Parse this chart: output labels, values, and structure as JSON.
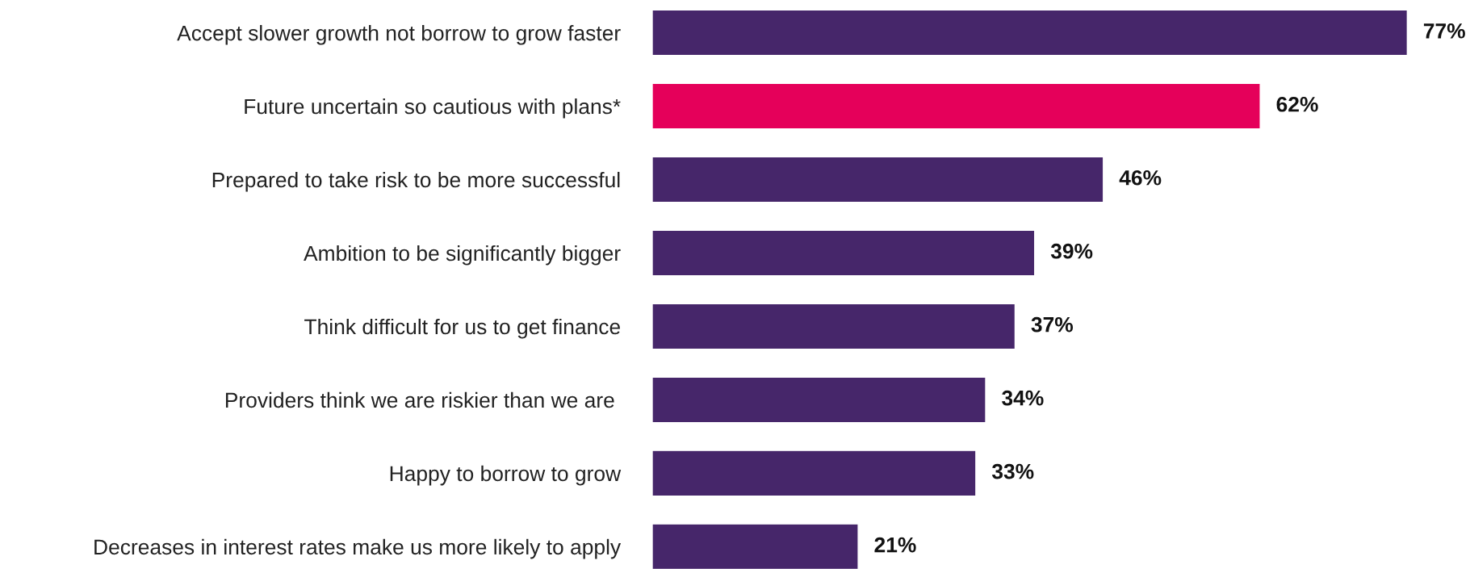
{
  "chart_data": {
    "type": "bar",
    "orientation": "horizontal",
    "categories": [
      "Accept slower growth not borrow to grow faster",
      "Future uncertain so cautious with plans*",
      "Prepared to take risk to be more successful",
      "Ambition to be significantly bigger",
      "Think difficult for us to get finance",
      "Providers think we are riskier than we are ",
      "Happy to borrow to grow",
      "Decreases in interest rates make us more likely to apply"
    ],
    "values": [
      77,
      62,
      46,
      39,
      37,
      34,
      33,
      21
    ],
    "colors": [
      "#46266a",
      "#e5005a",
      "#46266a",
      "#46266a",
      "#46266a",
      "#46266a",
      "#46266a",
      "#46266a"
    ],
    "value_labels": [
      "77%",
      "62%",
      "46%",
      "39%",
      "37%",
      "34%",
      "33%",
      "21%"
    ],
    "grid": false,
    "legend": false
  }
}
